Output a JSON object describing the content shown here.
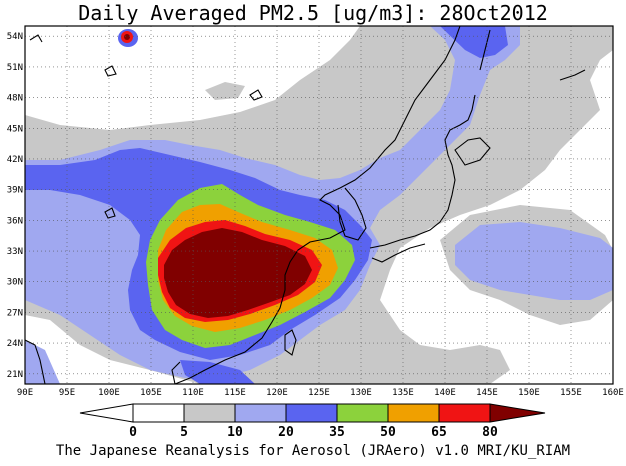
{
  "title": "Daily Averaged PM2.5 [ug/m3]: 28Oct2012",
  "footer": "The Japanese Reanalysis for Aerosol (JRAero) v1.0 MRI/KU_RIAM",
  "map": {
    "lon_range": [
      90,
      160
    ],
    "lat_range": [
      20,
      55
    ],
    "lon_labels": [
      "90E",
      "95E",
      "100E",
      "105E",
      "110E",
      "115E",
      "120E",
      "125E",
      "130E",
      "135E",
      "140E",
      "145E",
      "150E",
      "155E",
      "160E"
    ],
    "lat_labels": [
      "21N",
      "24N",
      "27N",
      "30N",
      "33N",
      "36N",
      "39N",
      "42N",
      "45N",
      "48N",
      "51N",
      "54N"
    ],
    "grid": "dotted"
  },
  "colorbar": {
    "levels": [
      "0",
      "5",
      "10",
      "20",
      "35",
      "50",
      "65",
      "80"
    ],
    "colors": {
      "below_0": "#ffffff",
      "0_5": "#ffffff",
      "5_10": "#c8c8c8",
      "10_20": "#a0a8f0",
      "20_35": "#5a64f0",
      "35_50": "#8cd23c",
      "50_65": "#f0a000",
      "65_80": "#f01414",
      "above_80": "#800000"
    }
  }
}
